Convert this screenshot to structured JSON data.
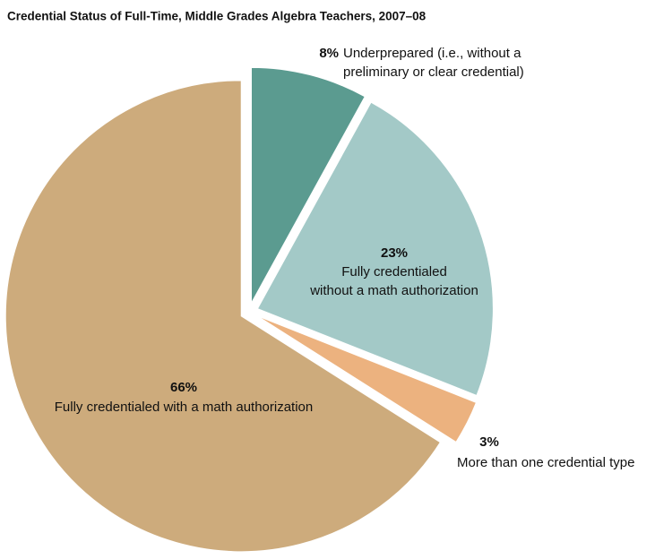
{
  "chart_data": {
    "type": "pie",
    "title": "Credential Status of Full-Time, Middle Grades Algebra Teachers, 2007–08",
    "categories": [
      [
        "Underprepared (i.e., without a",
        "preliminary or clear credential)"
      ],
      [
        "Fully credentialed",
        "without a math authorization"
      ],
      [
        "More than one credential type"
      ],
      [
        "Fully credentialed with a math authorization"
      ]
    ],
    "values": [
      8,
      23,
      3,
      66
    ],
    "value_labels": [
      "8%",
      "23%",
      "3%",
      "66%"
    ],
    "colors": [
      "#5b9b90",
      "#a3c9c7",
      "#ecb27f",
      "#cdab7c"
    ]
  }
}
